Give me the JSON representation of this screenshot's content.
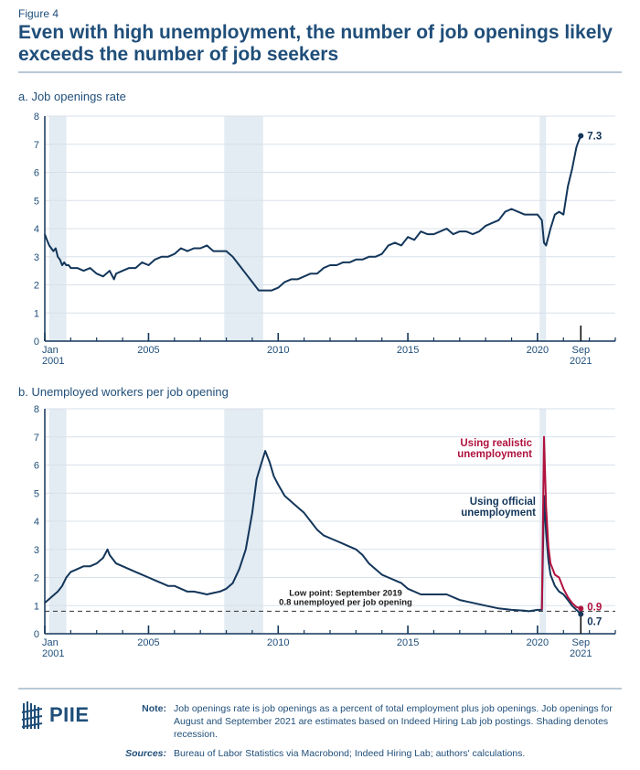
{
  "header": {
    "figure_label": "Figure 4",
    "title": "Even with high unemployment, the number of job openings likely exceeds the number of job seekers"
  },
  "colors": {
    "primary": "#13365a",
    "text": "#1f4e79",
    "realistic": "#b0123f",
    "recession": "#e3ebf3",
    "grid": "#d8e1ea",
    "rule": "#b9c8d6"
  },
  "chart_data": [
    {
      "type": "line",
      "title": "a. Job openings rate",
      "xlabel": "",
      "ylabel": "",
      "ylim": [
        0,
        8
      ],
      "xlim": [
        2001.0,
        2023.0
      ],
      "yticks": [
        "0",
        "1",
        "2",
        "3",
        "4",
        "5",
        "6",
        "7",
        "8"
      ],
      "xticks": [
        {
          "x": 2001.0,
          "label": [
            "Jan",
            "2001"
          ],
          "major": true
        },
        {
          "x": 2005.0,
          "label": [
            "2005"
          ],
          "major": true
        },
        {
          "x": 2010.0,
          "label": [
            "2010"
          ],
          "major": true
        },
        {
          "x": 2015.0,
          "label": [
            "2015"
          ],
          "major": true
        },
        {
          "x": 2020.0,
          "label": [
            "2020"
          ],
          "major": true
        },
        {
          "x": 2021.67,
          "label": [
            "Sep",
            "2021"
          ],
          "major": true,
          "emphasis": true
        }
      ],
      "grid": true,
      "recessions": [
        [
          2001.17,
          2001.83
        ],
        [
          2007.92,
          2009.42
        ],
        [
          2020.08,
          2020.33
        ]
      ],
      "series": [
        {
          "name": "Job openings rate",
          "color_key": "primary",
          "x": [
            2001.0,
            2001.08,
            2001.17,
            2001.25,
            2001.33,
            2001.42,
            2001.5,
            2001.58,
            2001.67,
            2001.75,
            2001.83,
            2001.92,
            2002.0,
            2002.25,
            2002.5,
            2002.75,
            2003.0,
            2003.25,
            2003.5,
            2003.67,
            2003.75,
            2004.0,
            2004.25,
            2004.5,
            2004.75,
            2005.0,
            2005.25,
            2005.5,
            2005.75,
            2006.0,
            2006.25,
            2006.5,
            2006.75,
            2007.0,
            2007.25,
            2007.5,
            2007.75,
            2008.0,
            2008.25,
            2008.5,
            2008.75,
            2009.0,
            2009.25,
            2009.5,
            2009.75,
            2010.0,
            2010.25,
            2010.5,
            2010.75,
            2011.0,
            2011.25,
            2011.5,
            2011.75,
            2012.0,
            2012.25,
            2012.5,
            2012.75,
            2013.0,
            2013.25,
            2013.5,
            2013.75,
            2014.0,
            2014.25,
            2014.5,
            2014.75,
            2015.0,
            2015.25,
            2015.5,
            2015.75,
            2016.0,
            2016.25,
            2016.5,
            2016.75,
            2017.0,
            2017.25,
            2017.5,
            2017.75,
            2018.0,
            2018.25,
            2018.5,
            2018.75,
            2019.0,
            2019.25,
            2019.5,
            2019.75,
            2020.0,
            2020.17,
            2020.25,
            2020.33,
            2020.5,
            2020.67,
            2020.83,
            2021.0,
            2021.17,
            2021.33,
            2021.5,
            2021.58,
            2021.67
          ],
          "y": [
            3.8,
            3.6,
            3.4,
            3.3,
            3.2,
            3.3,
            3.0,
            2.9,
            2.7,
            2.8,
            2.7,
            2.7,
            2.6,
            2.6,
            2.5,
            2.6,
            2.4,
            2.3,
            2.5,
            2.2,
            2.4,
            2.5,
            2.6,
            2.6,
            2.8,
            2.7,
            2.9,
            3.0,
            3.0,
            3.1,
            3.3,
            3.2,
            3.3,
            3.3,
            3.4,
            3.2,
            3.2,
            3.2,
            3.0,
            2.7,
            2.4,
            2.1,
            1.8,
            1.8,
            1.8,
            1.9,
            2.1,
            2.2,
            2.2,
            2.3,
            2.4,
            2.4,
            2.6,
            2.7,
            2.7,
            2.8,
            2.8,
            2.9,
            2.9,
            3.0,
            3.0,
            3.1,
            3.4,
            3.5,
            3.4,
            3.7,
            3.6,
            3.9,
            3.8,
            3.8,
            3.9,
            4.0,
            3.8,
            3.9,
            3.9,
            3.8,
            3.9,
            4.1,
            4.2,
            4.3,
            4.6,
            4.7,
            4.6,
            4.5,
            4.5,
            4.5,
            4.3,
            3.5,
            3.4,
            4.0,
            4.5,
            4.6,
            4.5,
            5.5,
            6.1,
            6.9,
            7.1,
            7.3
          ]
        }
      ],
      "annotations": [
        {
          "x": 2021.67,
          "y": 7.3,
          "label": "7.3",
          "color_key": "primary"
        }
      ]
    },
    {
      "type": "line",
      "title": "b. Unemployed workers per job opening",
      "xlabel": "",
      "ylabel": "",
      "ylim": [
        0,
        8
      ],
      "xlim": [
        2001.0,
        2023.0
      ],
      "yticks": [
        "0",
        "1",
        "2",
        "3",
        "4",
        "5",
        "6",
        "7",
        "8"
      ],
      "xticks": [
        {
          "x": 2001.0,
          "label": [
            "Jan",
            "2001"
          ],
          "major": true
        },
        {
          "x": 2005.0,
          "label": [
            "2005"
          ],
          "major": true
        },
        {
          "x": 2010.0,
          "label": [
            "2010"
          ],
          "major": true
        },
        {
          "x": 2015.0,
          "label": [
            "2015"
          ],
          "major": true
        },
        {
          "x": 2020.0,
          "label": [
            "2020"
          ],
          "major": true
        },
        {
          "x": 2021.67,
          "label": [
            "Sep",
            "2021"
          ],
          "major": true,
          "emphasis": true
        }
      ],
      "grid": true,
      "recessions": [
        [
          2001.17,
          2001.83
        ],
        [
          2007.92,
          2009.42
        ],
        [
          2020.08,
          2020.33
        ]
      ],
      "reference_line": {
        "y": 0.8,
        "style": "dashed",
        "label_lines": [
          "Low point: September 2019",
          "0.8 unemployed per job opening"
        ]
      },
      "series": [
        {
          "name": "Using official unemployment",
          "color_key": "primary",
          "x": [
            2001.0,
            2001.25,
            2001.5,
            2001.67,
            2001.83,
            2002.0,
            2002.25,
            2002.5,
            2002.75,
            2003.0,
            2003.25,
            2003.42,
            2003.5,
            2003.75,
            2004.0,
            2004.25,
            2004.5,
            2004.75,
            2005.0,
            2005.25,
            2005.5,
            2005.75,
            2006.0,
            2006.25,
            2006.5,
            2006.75,
            2007.0,
            2007.25,
            2007.5,
            2007.75,
            2008.0,
            2008.25,
            2008.5,
            2008.75,
            2009.0,
            2009.17,
            2009.33,
            2009.5,
            2009.67,
            2009.83,
            2010.0,
            2010.25,
            2010.5,
            2010.75,
            2011.0,
            2011.25,
            2011.5,
            2011.75,
            2012.0,
            2012.25,
            2012.5,
            2012.75,
            2013.0,
            2013.25,
            2013.5,
            2013.75,
            2014.0,
            2014.25,
            2014.5,
            2014.75,
            2015.0,
            2015.5,
            2016.0,
            2016.5,
            2017.0,
            2017.5,
            2018.0,
            2018.5,
            2019.0,
            2019.5,
            2019.67,
            2020.0,
            2020.17,
            2020.25,
            2020.33,
            2020.42,
            2020.5,
            2020.67,
            2020.83,
            2021.0,
            2021.17,
            2021.33,
            2021.5,
            2021.67
          ],
          "y": [
            1.1,
            1.3,
            1.5,
            1.7,
            2.0,
            2.2,
            2.3,
            2.4,
            2.4,
            2.5,
            2.7,
            3.0,
            2.8,
            2.5,
            2.4,
            2.3,
            2.2,
            2.1,
            2.0,
            1.9,
            1.8,
            1.7,
            1.7,
            1.6,
            1.5,
            1.5,
            1.45,
            1.4,
            1.45,
            1.5,
            1.6,
            1.8,
            2.3,
            3.0,
            4.3,
            5.5,
            6.0,
            6.5,
            6.1,
            5.6,
            5.3,
            4.9,
            4.7,
            4.5,
            4.3,
            4.0,
            3.7,
            3.5,
            3.4,
            3.3,
            3.2,
            3.1,
            3.0,
            2.8,
            2.5,
            2.3,
            2.1,
            2.0,
            1.9,
            1.8,
            1.6,
            1.4,
            1.4,
            1.4,
            1.2,
            1.1,
            1.0,
            0.9,
            0.85,
            0.82,
            0.8,
            0.85,
            0.85,
            4.9,
            3.6,
            2.6,
            2.1,
            1.7,
            1.5,
            1.4,
            1.2,
            1.0,
            0.85,
            0.7
          ]
        },
        {
          "name": "Using realistic unemployment",
          "color_key": "realistic",
          "x": [
            2020.17,
            2020.25,
            2020.33,
            2020.42,
            2020.5,
            2020.67,
            2020.83,
            2021.0,
            2021.17,
            2021.33,
            2021.5,
            2021.67
          ],
          "y": [
            0.85,
            7.0,
            4.5,
            3.1,
            2.5,
            2.1,
            2.0,
            1.6,
            1.3,
            1.1,
            0.95,
            0.9
          ]
        }
      ],
      "annotations": [
        {
          "x": 2021.67,
          "y": 0.9,
          "label": "0.9",
          "color_key": "realistic"
        },
        {
          "x": 2021.67,
          "y": 0.7,
          "label": "0.7",
          "color_key": "primary"
        },
        {
          "label_lines": [
            "Using realistic",
            "unemployment"
          ],
          "color_key": "realistic"
        },
        {
          "label_lines": [
            "Using official",
            "unemployment"
          ],
          "color_key": "primary"
        }
      ]
    }
  ],
  "footer": {
    "logo_text": "PIIE",
    "note_label": "Note:",
    "note_text": "Job openings rate is job openings as a percent of total employment plus job openings. Job openings for August and September 2021 are estimates based on Indeed Hiring Lab job postings. Shading denotes recession.",
    "sources_label": "Sources:",
    "sources_text": "Bureau of Labor Statistics via Macrobond; Indeed Hiring Lab; authors' calculations."
  }
}
